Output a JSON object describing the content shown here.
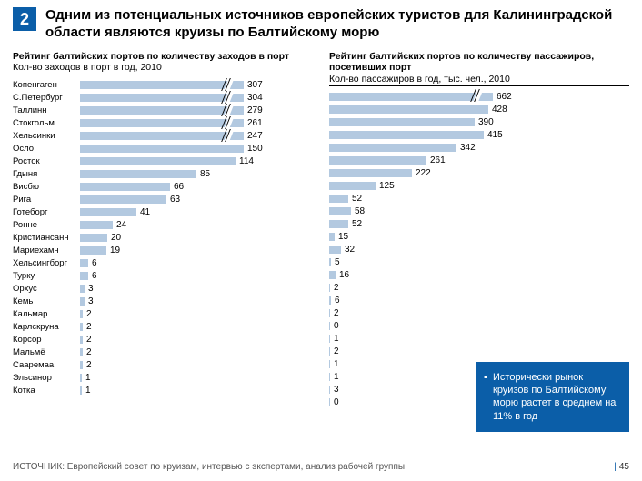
{
  "slide_number": "2",
  "title": "Одним из потенциальных источников европейских туристов для Калининградской области являются круизы по Балтийскому морю",
  "chart_left": {
    "title": "Рейтинг балтийских портов по количеству заходов в порт",
    "subtitle": "Кол-во заходов в порт в год, 2010",
    "bar_color": "#b3c9e0",
    "max_display": 120,
    "break_threshold": 200,
    "rows": [
      {
        "label": "Копенгаген",
        "value": 307
      },
      {
        "label": "С.Петербург",
        "value": 304
      },
      {
        "label": "Таллинн",
        "value": 279
      },
      {
        "label": "Стокгольм",
        "value": 261
      },
      {
        "label": "Хельсинки",
        "value": 247
      },
      {
        "label": "Осло",
        "value": 150
      },
      {
        "label": "Росток",
        "value": 114
      },
      {
        "label": "Гдыня",
        "value": 85
      },
      {
        "label": "Висбю",
        "value": 66
      },
      {
        "label": "Рига",
        "value": 63
      },
      {
        "label": "Готеборг",
        "value": 41
      },
      {
        "label": "Ронне",
        "value": 24
      },
      {
        "label": "Кристиансанн",
        "value": 20
      },
      {
        "label": "Мариехамн",
        "value": 19
      },
      {
        "label": "Хельсингборг",
        "value": 6
      },
      {
        "label": "Турку",
        "value": 6
      },
      {
        "label": "Орхус",
        "value": 3
      },
      {
        "label": "Кемь",
        "value": 3
      },
      {
        "label": "Кальмар",
        "value": 2
      },
      {
        "label": "Карлскруна",
        "value": 2
      },
      {
        "label": "Корсор",
        "value": 2
      },
      {
        "label": "Мальмё",
        "value": 2
      },
      {
        "label": "Сааремаа",
        "value": 2
      },
      {
        "label": "Эльсинор",
        "value": 1
      },
      {
        "label": "Котка",
        "value": 1
      }
    ]
  },
  "chart_right": {
    "title": "Рейтинг балтийских портов по количеству пассажиров, посетивших порт",
    "subtitle": "Кол-во пассажиров в год, тыс. чел., 2010",
    "bar_color": "#b3c9e0",
    "max_display": 440,
    "break_threshold": 600,
    "rows": [
      {
        "value": 662
      },
      {
        "value": 428
      },
      {
        "value": 390
      },
      {
        "value": 415
      },
      {
        "value": 342
      },
      {
        "value": 261
      },
      {
        "value": 222
      },
      {
        "value": 125
      },
      {
        "value": 52
      },
      {
        "value": 58
      },
      {
        "value": 52
      },
      {
        "value": 15
      },
      {
        "value": 32
      },
      {
        "value": 5
      },
      {
        "value": 16
      },
      {
        "value": 2
      },
      {
        "value": 6
      },
      {
        "value": 2
      },
      {
        "value": 0
      },
      {
        "value": 1
      },
      {
        "value": 2
      },
      {
        "value": 1
      },
      {
        "value": 1
      },
      {
        "value": 3
      },
      {
        "value": 0
      }
    ]
  },
  "callout": "Исторически рынок круизов по Балтийскому морю растет в среднем на 11% в год",
  "source": "ИСТОЧНИК: Европейский совет по круизам, интервью с экспертами, анализ рабочей группы",
  "page": "45"
}
